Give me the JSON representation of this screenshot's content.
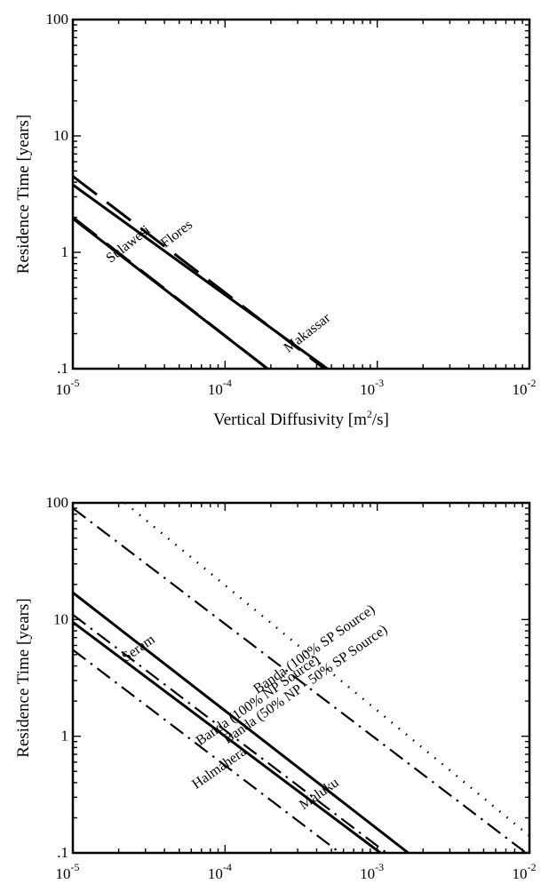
{
  "chart_data": [
    {
      "type": "line",
      "xlabel": "Vertical Diffusivity [m²/s]",
      "xlabel_main": "Vertical Diffusivity [m",
      "xlabel_sup": "2",
      "xlabel_tail": "/s]",
      "ylabel": "Residence Time [years]",
      "xscale": "log",
      "yscale": "log",
      "xlim": [
        1e-05,
        0.01
      ],
      "ylim": [
        0.1,
        100
      ],
      "xticks": [
        {
          "value": 1e-05,
          "base": "10",
          "exp": "-5"
        },
        {
          "value": 0.0001,
          "base": "10",
          "exp": "-4"
        },
        {
          "value": 0.001,
          "base": "10",
          "exp": "-3"
        },
        {
          "value": 0.01,
          "base": "10",
          "exp": "-2"
        }
      ],
      "yticks": [
        {
          "value": 100,
          "label": "100"
        },
        {
          "value": 10,
          "label": "10"
        },
        {
          "value": 1,
          "label": "1"
        },
        {
          "value": 0.1,
          "label": ".1"
        }
      ],
      "series": [
        {
          "name": "Flores",
          "style": "dashed",
          "x": [
            1e-05,
            0.00045
          ],
          "y": [
            4.5,
            0.1
          ]
        },
        {
          "name": "Makassar",
          "style": "solid",
          "x": [
            1e-05,
            0.00047
          ],
          "y": [
            3.8,
            0.1
          ]
        },
        {
          "name": "Sulawesi",
          "style": "dashed",
          "x": [
            1e-05,
            0.00019
          ],
          "y": [
            2.0,
            0.1
          ]
        },
        {
          "name": "",
          "style": "solid",
          "x": [
            1e-05,
            0.00019
          ],
          "y": [
            1.95,
            0.1
          ]
        }
      ],
      "annotations": [
        {
          "text": "Flores",
          "x": 5e-05,
          "y": 1.35
        },
        {
          "text": "Makassar",
          "x": 0.00036,
          "y": 0.19
        },
        {
          "text": "Sulawesi",
          "x": 2.4e-05,
          "y": 1.1
        }
      ]
    },
    {
      "type": "line",
      "xlabel": "Vertical Diffusivity [m²/s]",
      "xlabel_main": "Vertical Diffusivity [m",
      "xlabel_sup": "2",
      "xlabel_tail": "/s]",
      "ylabel": "Residence Time [years]",
      "xscale": "log",
      "yscale": "log",
      "xlim": [
        1e-05,
        0.01
      ],
      "ylim": [
        0.1,
        100
      ],
      "xticks": [
        {
          "value": 1e-05,
          "base": "10",
          "exp": "-5"
        },
        {
          "value": 0.0001,
          "base": "10",
          "exp": "-4"
        },
        {
          "value": 0.001,
          "base": "10",
          "exp": "-3"
        },
        {
          "value": 0.01,
          "base": "10",
          "exp": "-2"
        }
      ],
      "yticks": [
        {
          "value": 100,
          "label": "100"
        },
        {
          "value": 10,
          "label": "10"
        },
        {
          "value": 1,
          "label": "1"
        },
        {
          "value": 0.1,
          "label": ".1"
        }
      ],
      "series": [
        {
          "name": "Banda (100% SP Source)",
          "style": "dotted",
          "x": [
            2.2e-05,
            0.01
          ],
          "y": [
            100,
            0.14
          ]
        },
        {
          "name": "Banda (50% NP - 50% SP Source)",
          "style": "dashdot",
          "x": [
            1e-05,
            0.0095
          ],
          "y": [
            90,
            0.1
          ]
        },
        {
          "name": "Banda (100% NP Source)",
          "style": "solid",
          "x": [
            1e-05,
            0.0016
          ],
          "y": [
            17,
            0.1
          ]
        },
        {
          "name": "Seram",
          "style": "dashdot",
          "x": [
            1e-05,
            0.00115
          ],
          "y": [
            11,
            0.1
          ]
        },
        {
          "name": "Maluku",
          "style": "solid",
          "x": [
            1e-05,
            0.00105
          ],
          "y": [
            9.5,
            0.1
          ]
        },
        {
          "name": "Halmahera",
          "style": "dashdot",
          "x": [
            1e-05,
            0.00057
          ],
          "y": [
            5.5,
            0.1
          ]
        }
      ],
      "annotations": [
        {
          "text": "Banda (100% SP Source)",
          "x": 0.0004,
          "y": 5.2
        },
        {
          "text": "Banda (50% NP - 50% SP Source)",
          "x": 0.00035,
          "y": 2.6
        },
        {
          "text": "Banda (100% NP Source)",
          "x": 0.00017,
          "y": 1.9
        },
        {
          "text": "Seram",
          "x": 2.8e-05,
          "y": 5.3
        },
        {
          "text": "Maluku",
          "x": 0.00043,
          "y": 0.3
        },
        {
          "text": "Halmahera",
          "x": 9.5e-05,
          "y": 0.5
        }
      ]
    }
  ]
}
